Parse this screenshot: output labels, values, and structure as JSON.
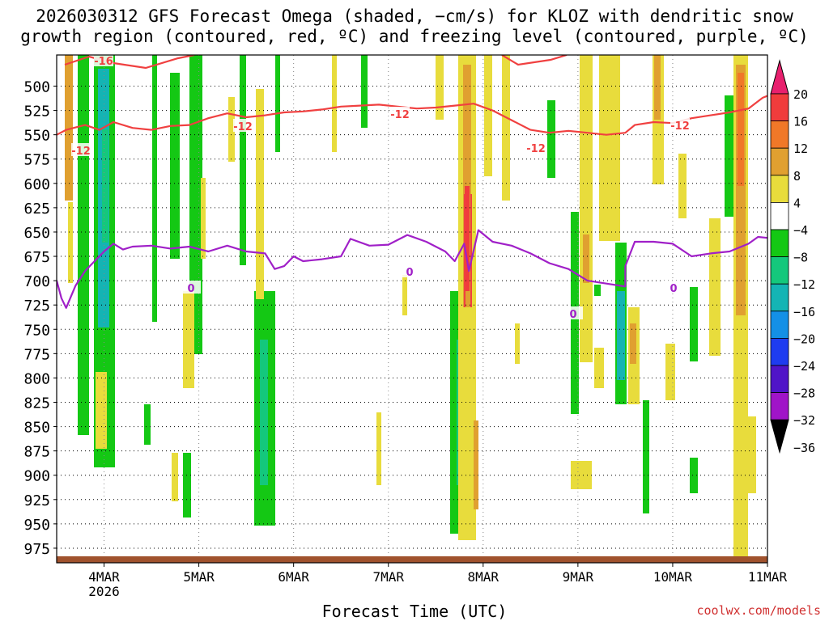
{
  "chart_data": {
    "type": "heatmap",
    "title_line1": "2026030312 GFS Forecast Omega (shaded, −cm/s) for KLOZ with dendritic snow",
    "title_line2": "growth region (contoured, red, ºC) and freezing level (contoured, purple, ºC)",
    "xlabel": "Forecast Time (UTC)",
    "credit": "coolwx.com/models",
    "x_start_day": 3.5,
    "x_end_day": 11,
    "y_range_hpa": [
      468,
      990
    ],
    "y_ticks": [
      500,
      525,
      550,
      575,
      600,
      625,
      650,
      675,
      700,
      725,
      750,
      775,
      800,
      825,
      850,
      875,
      900,
      925,
      950,
      975
    ],
    "x_ticks": [
      {
        "day": 4,
        "label": "4MAR",
        "sub": "2026"
      },
      {
        "day": 5,
        "label": "5MAR",
        "sub": ""
      },
      {
        "day": 6,
        "label": "6MAR",
        "sub": ""
      },
      {
        "day": 7,
        "label": "7MAR",
        "sub": ""
      },
      {
        "day": 8,
        "label": "8MAR",
        "sub": ""
      },
      {
        "day": 9,
        "label": "9MAR",
        "sub": ""
      },
      {
        "day": 10,
        "label": "10MAR",
        "sub": ""
      },
      {
        "day": 11,
        "label": "11MAR",
        "sub": ""
      }
    ],
    "colorbar": [
      {
        "label": "20",
        "color": "#e8206e"
      },
      {
        "label": "16",
        "color": "#f03c3c"
      },
      {
        "label": "12",
        "color": "#f07828"
      },
      {
        "label": "8",
        "color": "#e0a030"
      },
      {
        "label": "4",
        "color": "#e8dc3c"
      },
      {
        "label": "−4",
        "color": "#ffffff"
      },
      {
        "label": "−8",
        "color": "#14c814"
      },
      {
        "label": "−12",
        "color": "#14c87c"
      },
      {
        "label": "−16",
        "color": "#14b4b4"
      },
      {
        "label": "−20",
        "color": "#1490e6"
      },
      {
        "label": "−24",
        "color": "#1e3cf0"
      },
      {
        "label": "−28",
        "color": "#5014c8"
      },
      {
        "label": "−32",
        "color": "#a014c8"
      },
      {
        "label": "−36",
        "color": "#a8a8a8"
      }
    ],
    "dgz_contour_label": "-12",
    "dgz_top_label": "-16",
    "dgz_level_hpa": [
      [
        3.5,
        550
      ],
      [
        3.6,
        545
      ],
      [
        3.8,
        540
      ],
      [
        3.95,
        545
      ],
      [
        4.1,
        537
      ],
      [
        4.3,
        543
      ],
      [
        4.5,
        545
      ],
      [
        4.7,
        541
      ],
      [
        4.9,
        540
      ],
      [
        5.1,
        533
      ],
      [
        5.3,
        528
      ],
      [
        5.5,
        532
      ],
      [
        5.7,
        530
      ],
      [
        5.9,
        527
      ],
      [
        6.1,
        526
      ],
      [
        6.3,
        524
      ],
      [
        6.5,
        521
      ],
      [
        6.7,
        520
      ],
      [
        6.9,
        519
      ],
      [
        7.1,
        521
      ],
      [
        7.3,
        523
      ],
      [
        7.5,
        522
      ],
      [
        7.7,
        520
      ],
      [
        7.9,
        518
      ],
      [
        8.1,
        525
      ],
      [
        8.3,
        535
      ],
      [
        8.5,
        545
      ],
      [
        8.7,
        548
      ],
      [
        8.9,
        546
      ],
      [
        9.1,
        548
      ],
      [
        9.3,
        550
      ],
      [
        9.5,
        548
      ],
      [
        9.6,
        540
      ],
      [
        9.8,
        537
      ],
      [
        10.0,
        538
      ],
      [
        10.2,
        533
      ],
      [
        10.4,
        530
      ],
      [
        10.6,
        527
      ],
      [
        10.8,
        523
      ],
      [
        10.95,
        512
      ],
      [
        11.0,
        510
      ]
    ],
    "freezing_level_label": "0",
    "freezing_level_hpa": [
      [
        3.5,
        700
      ],
      [
        3.55,
        718
      ],
      [
        3.6,
        728
      ],
      [
        3.7,
        705
      ],
      [
        3.8,
        690
      ],
      [
        3.9,
        680
      ],
      [
        4.0,
        670
      ],
      [
        4.1,
        662
      ],
      [
        4.2,
        668
      ],
      [
        4.3,
        665
      ],
      [
        4.5,
        664
      ],
      [
        4.7,
        667
      ],
      [
        4.9,
        665
      ],
      [
        5.1,
        670
      ],
      [
        5.3,
        664
      ],
      [
        5.5,
        670
      ],
      [
        5.7,
        672
      ],
      [
        5.8,
        688
      ],
      [
        5.9,
        685
      ],
      [
        6.0,
        675
      ],
      [
        6.1,
        680
      ],
      [
        6.3,
        678
      ],
      [
        6.5,
        675
      ],
      [
        6.6,
        657
      ],
      [
        6.8,
        664
      ],
      [
        7.0,
        663
      ],
      [
        7.2,
        653
      ],
      [
        7.4,
        660
      ],
      [
        7.6,
        670
      ],
      [
        7.7,
        680
      ],
      [
        7.8,
        662
      ],
      [
        7.85,
        690
      ],
      [
        7.95,
        648
      ],
      [
        8.1,
        660
      ],
      [
        8.3,
        664
      ],
      [
        8.5,
        672
      ],
      [
        8.7,
        682
      ],
      [
        8.9,
        688
      ],
      [
        9.1,
        700
      ],
      [
        9.3,
        703
      ],
      [
        9.5,
        706
      ],
      [
        9.5,
        685
      ],
      [
        9.6,
        660
      ],
      [
        9.8,
        660
      ],
      [
        10.0,
        662
      ],
      [
        10.2,
        675
      ],
      [
        10.4,
        672
      ],
      [
        10.6,
        670
      ],
      [
        10.8,
        662
      ],
      [
        10.9,
        655
      ],
      [
        11.0,
        656
      ]
    ]
  }
}
